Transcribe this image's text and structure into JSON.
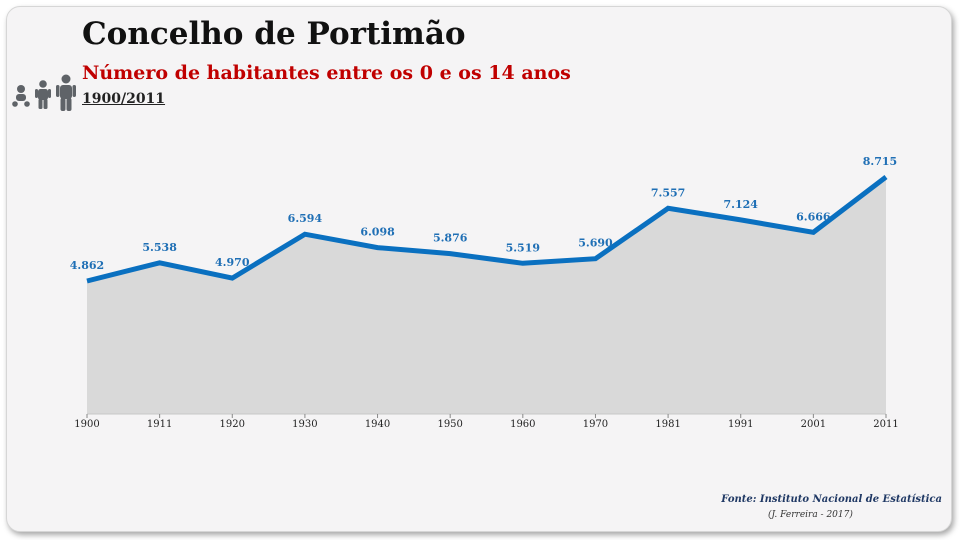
{
  "header": {
    "title": "Concelho de Portimão",
    "subtitle": "Número de habitantes entre os 0 e os 14 anos",
    "period": "1900/2011"
  },
  "icons": [
    "baby-icon",
    "child-icon",
    "teen-icon"
  ],
  "colors": {
    "line": "#0a70c0",
    "area": "#d9d9d9",
    "label": "#1f6fb5",
    "subtitle": "#c00000"
  },
  "chart_data": {
    "type": "area",
    "x": [
      "1900",
      "1911",
      "1920",
      "1930",
      "1940",
      "1950",
      "1960",
      "1970",
      "1981",
      "1991",
      "2001",
      "2011"
    ],
    "values": [
      4862,
      5538,
      4970,
      6594,
      6098,
      5876,
      5519,
      5690,
      7557,
      7124,
      6666,
      8715
    ],
    "data_labels": [
      "4.862",
      "5.538",
      "4.970",
      "6.594",
      "6.098",
      "5.876",
      "5.519",
      "5.690",
      "7.557",
      "7.124",
      "6.666",
      "8.715"
    ],
    "grid": false,
    "legend": "none"
  },
  "footer": {
    "source": "Fonte: Instituto Nacional de Estatística",
    "author": "(J. Ferreira - 2017)"
  }
}
